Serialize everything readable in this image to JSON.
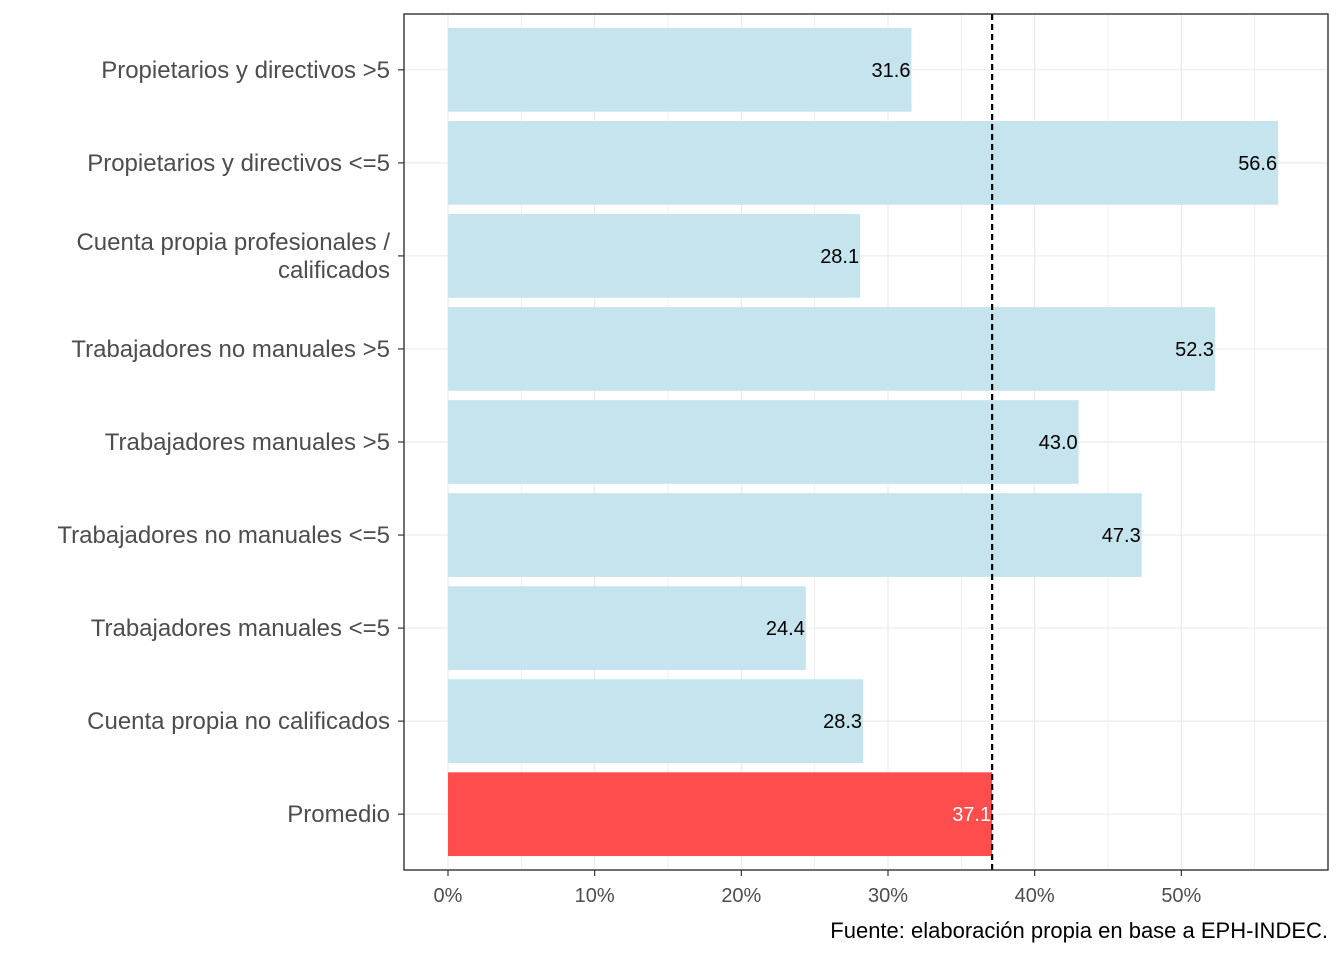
{
  "chart_data": {
    "type": "bar",
    "orientation": "horizontal",
    "categories": [
      [
        "Propietarios y directivos >5"
      ],
      [
        "Propietarios y directivos <=5"
      ],
      [
        "Cuenta propia profesionales /",
        "calificados"
      ],
      [
        "Trabajadores no manuales >5"
      ],
      [
        "Trabajadores manuales >5"
      ],
      [
        "Trabajadores no manuales <=5"
      ],
      [
        "Trabajadores manuales <=5"
      ],
      [
        "Cuenta propia no calificados"
      ],
      [
        "Promedio"
      ]
    ],
    "values": [
      31.6,
      56.6,
      28.1,
      52.3,
      43.0,
      47.3,
      24.4,
      28.3,
      37.1
    ],
    "value_labels": [
      "31.6",
      "56.6",
      "28.1",
      "52.3",
      "43.0",
      "47.3",
      "24.4",
      "28.3",
      "37.1"
    ],
    "highlight_index": 8,
    "reference_line": 37.1,
    "x_ticks": [
      0,
      10,
      20,
      30,
      40,
      50
    ],
    "x_tick_labels": [
      "0%",
      "10%",
      "20%",
      "30%",
      "40%",
      "50%"
    ],
    "xlim": [
      -3,
      60
    ],
    "grid": true,
    "colors": {
      "bar": "#c6e4ed",
      "highlight": "#ff4d4d",
      "label": "#000000",
      "highlight_label": "#ffffff",
      "grid": "#ebebeb",
      "reference_line": "#000000"
    },
    "title": "",
    "xlabel": "",
    "ylabel": ""
  },
  "caption": "Fuente: elaboración propia en base a EPH-INDEC."
}
